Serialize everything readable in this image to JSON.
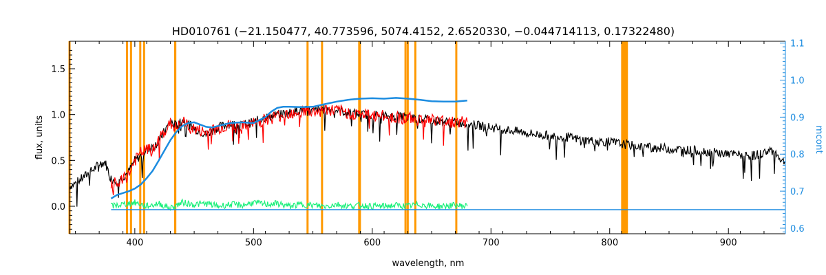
{
  "chart_data": {
    "type": "line",
    "title": "HD010761    (−21.150477, 40.773596, 5074.4152, 2.6520330, −0.044714113, 0.17322480)",
    "xlabel": "wavelength, nm",
    "ylabel": "flux, units",
    "y2label": "mcont",
    "xlim": [
      345,
      948
    ],
    "ylim": [
      -0.3,
      1.8
    ],
    "y2lim": [
      0.585,
      1.105
    ],
    "xticks": [
      400,
      500,
      600,
      700,
      800,
      900
    ],
    "xtick_labels": [
      "400",
      "500",
      "600",
      "700",
      "800",
      "900"
    ],
    "yticks": [
      0.0,
      0.5,
      1.0,
      1.5
    ],
    "ytick_labels": [
      "0.0",
      "0.5",
      "1.0",
      "1.5"
    ],
    "y2ticks": [
      0.6,
      0.7,
      0.8,
      0.9,
      1.0,
      1.1
    ],
    "y2tick_labels": [
      "0.6",
      "0.7",
      "0.8",
      "0.9",
      "1.0",
      "1.1"
    ],
    "grid": false,
    "colors": {
      "observed": "#000000",
      "model": "#ff0000",
      "residual": "#19f07a",
      "continuum": "#1c8ce0",
      "line_markers": "#ff9900"
    },
    "line_markers": [
      345,
      393.4,
      396.8,
      404.6,
      407.8,
      434.0,
      434.1,
      545.5,
      557.7,
      589.0,
      589.6,
      628.0,
      629.9,
      636.3,
      670.8,
      810.5,
      812.0,
      813.0,
      814.5
    ],
    "series": [
      {
        "role": "observed",
        "x": [
          345,
          350,
          355,
          360,
          365,
          370,
          375,
          380,
          385,
          390,
          395,
          400,
          405,
          410,
          415,
          420,
          425,
          430,
          435,
          440,
          445,
          450,
          455,
          460,
          470,
          480,
          490,
          500,
          510,
          520,
          530,
          540,
          550,
          560,
          570,
          580,
          590,
          600,
          610,
          620,
          630,
          640,
          650,
          660,
          670,
          680,
          690,
          700,
          720,
          740,
          760,
          780,
          800,
          820,
          840,
          860,
          880,
          900,
          910,
          920,
          930,
          935,
          940,
          945,
          948
        ],
        "y": [
          0.22,
          0.25,
          0.3,
          0.35,
          0.4,
          0.46,
          0.48,
          0.3,
          0.28,
          0.32,
          0.38,
          0.5,
          0.55,
          0.62,
          0.65,
          0.7,
          0.82,
          0.92,
          0.88,
          0.95,
          0.9,
          0.85,
          0.82,
          0.78,
          0.86,
          0.9,
          0.88,
          0.92,
          0.97,
          1.0,
          1.02,
          1.05,
          1.04,
          1.06,
          1.05,
          1.02,
          1.0,
          1.0,
          0.98,
          0.98,
          0.97,
          0.95,
          0.94,
          0.92,
          0.92,
          0.9,
          0.88,
          0.86,
          0.82,
          0.78,
          0.76,
          0.72,
          0.7,
          0.66,
          0.64,
          0.62,
          0.6,
          0.57,
          0.56,
          0.55,
          0.58,
          0.62,
          0.58,
          0.5,
          0.48
        ]
      },
      {
        "role": "model",
        "x": [
          380,
          385,
          390,
          395,
          400,
          405,
          410,
          415,
          420,
          425,
          430,
          435,
          440,
          445,
          450,
          455,
          460,
          470,
          480,
          490,
          500,
          510,
          520,
          530,
          540,
          550,
          560,
          570,
          580,
          590,
          600,
          610,
          620,
          630,
          640,
          650,
          660,
          670,
          680
        ],
        "y": [
          0.25,
          0.24,
          0.28,
          0.35,
          0.5,
          0.58,
          0.62,
          0.6,
          0.72,
          0.82,
          0.9,
          0.85,
          0.92,
          0.88,
          0.84,
          0.82,
          0.8,
          0.85,
          0.88,
          0.86,
          0.9,
          0.95,
          0.98,
          1.02,
          1.04,
          1.03,
          1.05,
          1.04,
          1.02,
          1.0,
          0.99,
          0.98,
          0.97,
          0.96,
          0.95,
          0.94,
          0.93,
          0.92,
          0.92
        ]
      },
      {
        "role": "residual",
        "x": [
          380,
          390,
          400,
          410,
          420,
          430,
          440,
          450,
          460,
          470,
          480,
          490,
          500,
          510,
          520,
          530,
          540,
          550,
          560,
          570,
          580,
          590,
          600,
          610,
          620,
          630,
          640,
          650,
          660,
          670,
          680
        ],
        "y": [
          0.0,
          0.02,
          0.04,
          0.0,
          0.03,
          -0.02,
          0.04,
          0.02,
          0.03,
          0.0,
          0.02,
          0.01,
          0.04,
          0.02,
          0.03,
          0.0,
          0.02,
          0.01,
          0.0,
          0.02,
          0.0,
          0.01,
          0.0,
          0.0,
          0.01,
          0.0,
          0.02,
          0.0,
          0.0,
          0.01,
          0.0
        ]
      },
      {
        "role": "continuum",
        "axis": "right",
        "x": [
          380,
          385,
          390,
          395,
          400,
          405,
          410,
          415,
          420,
          425,
          430,
          435,
          440,
          445,
          450,
          455,
          460,
          465,
          470,
          480,
          490,
          500,
          510,
          515,
          520,
          525,
          530,
          540,
          550,
          560,
          570,
          580,
          590,
          600,
          610,
          620,
          630,
          640,
          650,
          660,
          670,
          680
        ],
        "y": [
          0.68,
          0.69,
          0.695,
          0.7,
          0.707,
          0.718,
          0.735,
          0.755,
          0.782,
          0.81,
          0.838,
          0.86,
          0.876,
          0.884,
          0.886,
          0.88,
          0.874,
          0.872,
          0.876,
          0.884,
          0.886,
          0.884,
          0.9,
          0.915,
          0.925,
          0.928,
          0.928,
          0.927,
          0.928,
          0.935,
          0.942,
          0.947,
          0.95,
          0.951,
          0.95,
          0.952,
          0.95,
          0.947,
          0.943,
          0.942,
          0.942,
          0.945
        ]
      },
      {
        "role": "zero_level",
        "axis": "right",
        "x": [
          380,
          948
        ],
        "y": [
          0.65,
          0.65
        ]
      }
    ]
  }
}
